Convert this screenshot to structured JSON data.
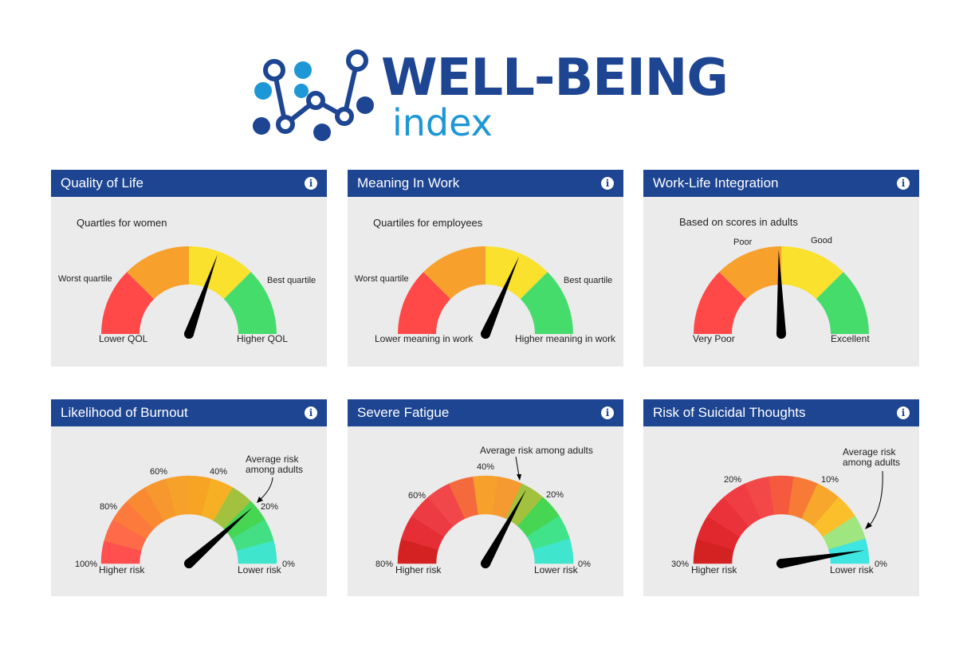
{
  "logo": {
    "title": "WELL-BEING",
    "subtitle": "index"
  },
  "colors": {
    "header": "#1d4592",
    "card": "#ebebeb",
    "red": "#ff4848",
    "orange": "#f7a12c",
    "yellow": "#f9e12d",
    "green": "#46dc6c",
    "needle": "#000000"
  },
  "cards": [
    {
      "title": "Quality of Life",
      "info_icon": "info-icon",
      "subtitle": "Quartles for women",
      "labels": [
        "Worst quartile",
        "Best quartile",
        "Lower QOL",
        "Higher QOL"
      ],
      "segments": [
        "#ff4848",
        "#f7a12c",
        "#f9e12d",
        "#46dc6c"
      ],
      "needle_value": 0.61
    },
    {
      "title": "Meaning In Work",
      "info_icon": "info-icon",
      "subtitle": "Quartiles for employees",
      "labels": [
        "Worst quartile",
        "Best quartile",
        "Lower meaning in work",
        "Higher meaning in work"
      ],
      "segments": [
        "#ff4848",
        "#f7a12c",
        "#f9e12d",
        "#46dc6c"
      ],
      "needle_value": 0.63
    },
    {
      "title": "Work-Life Integration",
      "info_icon": "info-icon",
      "subtitle": "Based on scores in adults",
      "labels": [
        "Poor",
        "Good",
        "Very Poor",
        "Excellent"
      ],
      "segments": [
        "#ff4848",
        "#f7a12c",
        "#f9e12d",
        "#46dc6c"
      ],
      "needle_value": 0.49
    },
    {
      "title": "Likelihood of Burnout",
      "info_icon": "info-icon",
      "ticks": [
        "100%",
        "80%",
        "60%",
        "40%",
        "20%",
        "0%"
      ],
      "labels": [
        "Higher risk",
        "Lower risk"
      ],
      "annotation": [
        "Average risk",
        "among adults"
      ],
      "segments": [
        "#ff4f4f",
        "#ff6a48",
        "#fc7a3b",
        "#f98a32",
        "#f7982e",
        "#f6a129",
        "#f7a324",
        "#f7b023",
        "#a2c23f",
        "#46d654",
        "#44df84",
        "#3fe5cc"
      ],
      "highlight_index": 8,
      "needle_value": 0.77
    },
    {
      "title": "Severe Fatigue",
      "info_icon": "info-icon",
      "ticks": [
        "80%",
        "60%",
        "40%",
        "20%",
        "0%"
      ],
      "labels": [
        "Higher risk",
        "Lower risk"
      ],
      "annotation": [
        "Average risk among adults"
      ],
      "segments": [
        "#d42222",
        "#e52e36",
        "#ec3b42",
        "#f2474a",
        "#f56a3c",
        "#f7a12c",
        "#f49a31",
        "#a2c23f",
        "#46d654",
        "#41e38a",
        "#3fe5cc"
      ],
      "highlight_index": 7,
      "needle_value": 0.66
    },
    {
      "title": "Risk of Suicidal Thoughts",
      "info_icon": "info-icon",
      "ticks": [
        "30%",
        "20%",
        "10%",
        "0%"
      ],
      "labels": [
        "Higher risk",
        "Lower risk"
      ],
      "annotation": [
        "Average risk",
        "among adults"
      ],
      "segments": [
        "#d42222",
        "#e0282e",
        "#ea323a",
        "#f03d44",
        "#f34848",
        "#f55a3e",
        "#f77b36",
        "#f7a72c",
        "#fbbf2c",
        "#9fe580",
        "#3fe5e0"
      ],
      "highlight_index": 9,
      "needle_value": 0.95
    }
  ]
}
